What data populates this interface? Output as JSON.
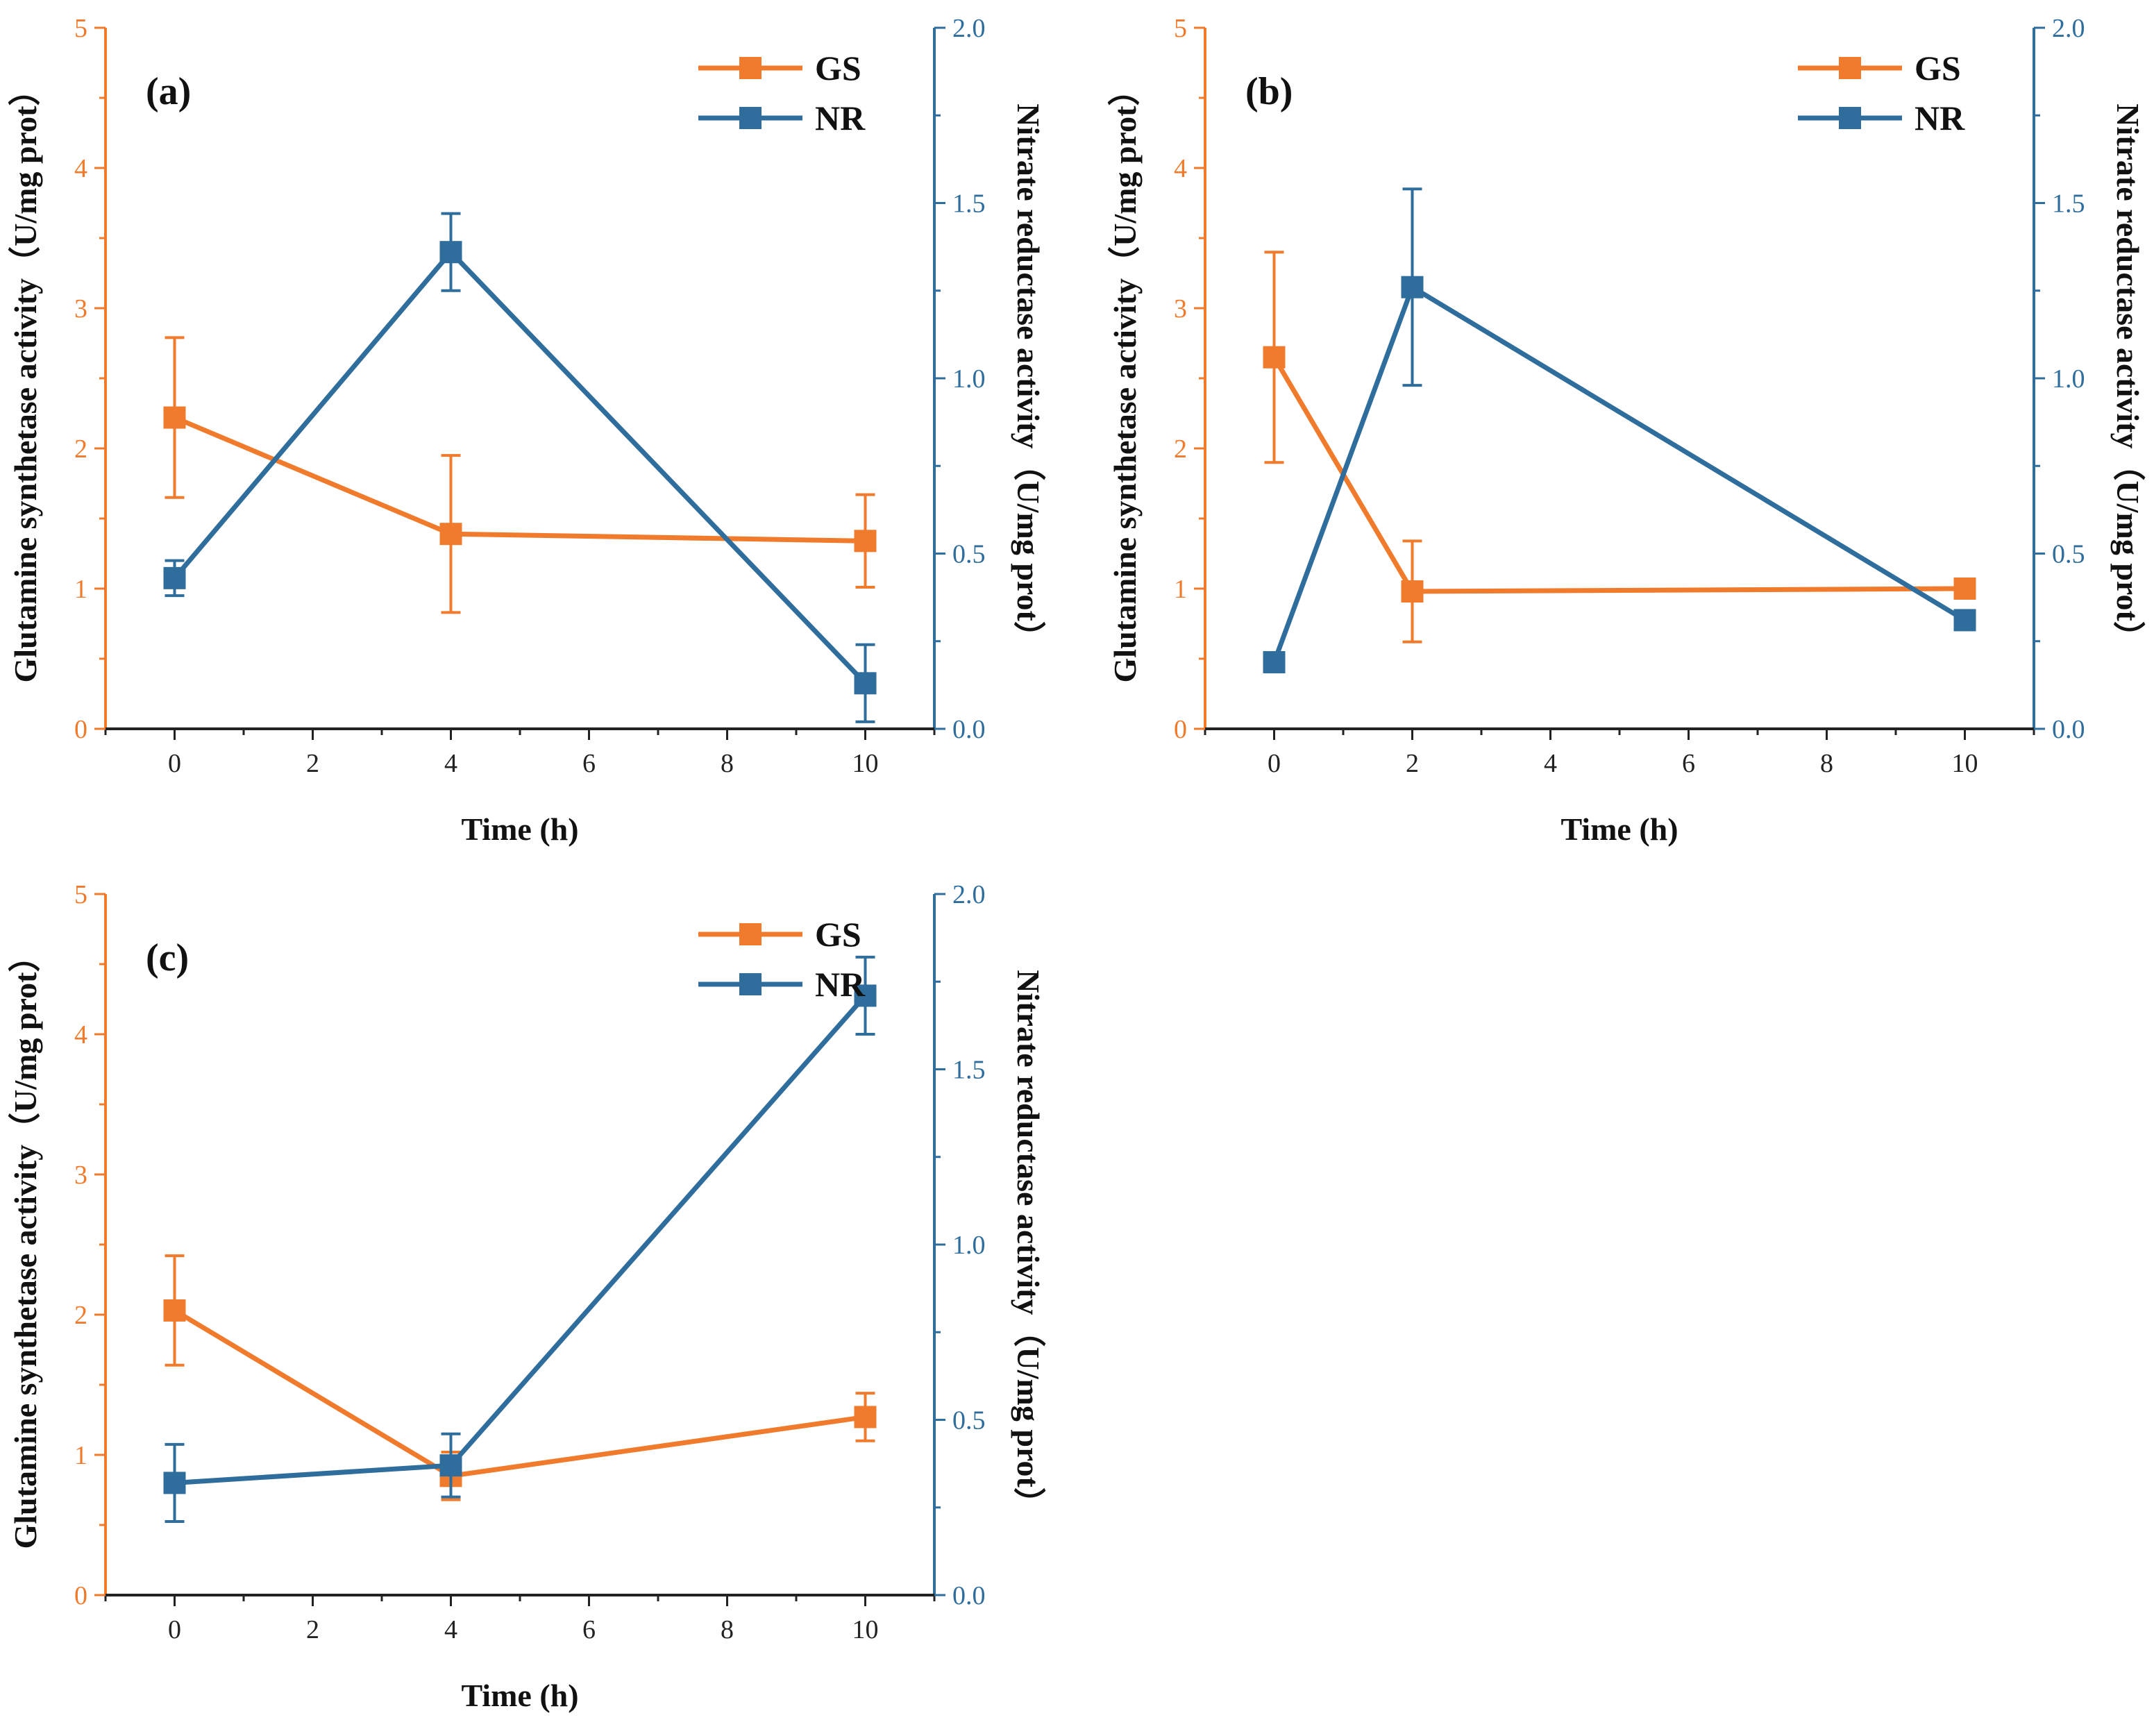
{
  "colors": {
    "gs": "#f07b2c",
    "nr": "#2f6d9c",
    "axis_bottom": "#222222"
  },
  "chart_data": [
    {
      "type": "line",
      "panel_label": "(a)",
      "xlabel": "Time (h)",
      "ylabel_left": "Glutamine synthetase activity（U/mg prot）",
      "ylabel_right": "Nitrate reductase activity（U/mg prot）",
      "xlim": [
        -1,
        11
      ],
      "ylim_left": [
        0,
        5
      ],
      "ylim_right": [
        0,
        2.0
      ],
      "x_ticks": [
        "0",
        "2",
        "4",
        "6",
        "8",
        "10"
      ],
      "y_ticks_left": [
        "0",
        "1",
        "2",
        "3",
        "4",
        "5"
      ],
      "y_ticks_right": [
        "0.0",
        "0.5",
        "1.0",
        "1.5",
        "2.0"
      ],
      "series": [
        {
          "name": "GS",
          "axis": "left",
          "x": [
            0,
            4,
            10
          ],
          "y": [
            2.22,
            1.39,
            1.34
          ],
          "err": [
            0.57,
            0.56,
            0.33
          ]
        },
        {
          "name": "NR",
          "axis": "right",
          "x": [
            0,
            4,
            10
          ],
          "y": [
            0.43,
            1.36,
            0.13
          ],
          "err": [
            0.05,
            0.11,
            0.11
          ]
        }
      ]
    },
    {
      "type": "line",
      "panel_label": "(b)",
      "xlabel": "Time (h)",
      "ylabel_left": "Glutamine synthetase activity（U/mg prot）",
      "ylabel_right": "Nitrate reductase activity（U/mg prot）",
      "xlim": [
        -1,
        11
      ],
      "ylim_left": [
        0,
        5
      ],
      "ylim_right": [
        0,
        2.0
      ],
      "x_ticks": [
        "0",
        "2",
        "4",
        "6",
        "8",
        "10"
      ],
      "y_ticks_left": [
        "0",
        "1",
        "2",
        "3",
        "4",
        "5"
      ],
      "y_ticks_right": [
        "0.0",
        "0.5",
        "1.0",
        "1.5",
        "2.0"
      ],
      "series": [
        {
          "name": "GS",
          "axis": "left",
          "x": [
            0,
            2,
            10
          ],
          "y": [
            2.65,
            0.98,
            1.0
          ],
          "err": [
            0.75,
            0.36,
            0
          ]
        },
        {
          "name": "NR",
          "axis": "right",
          "x": [
            0,
            2,
            10
          ],
          "y": [
            0.19,
            1.26,
            0.31
          ],
          "err": [
            0,
            0.28,
            0
          ]
        }
      ]
    },
    {
      "type": "line",
      "panel_label": "(c)",
      "xlabel": "Time (h)",
      "ylabel_left": "Glutamine synthetase activity（U/mg prot）",
      "ylabel_right": "Nitrate reductase activity（U/mg prot）",
      "xlim": [
        -1,
        11
      ],
      "ylim_left": [
        0,
        5
      ],
      "ylim_right": [
        0,
        2.0
      ],
      "x_ticks": [
        "0",
        "2",
        "4",
        "6",
        "8",
        "10"
      ],
      "y_ticks_left": [
        "0",
        "1",
        "2",
        "3",
        "4",
        "5"
      ],
      "y_ticks_right": [
        "0.0",
        "0.5",
        "1.0",
        "1.5",
        "2.0"
      ],
      "series": [
        {
          "name": "GS",
          "axis": "left",
          "x": [
            0,
            4,
            10
          ],
          "y": [
            2.03,
            0.85,
            1.27
          ],
          "err": [
            0.39,
            0.17,
            0.17
          ]
        },
        {
          "name": "NR",
          "axis": "right",
          "x": [
            0,
            4,
            10
          ],
          "y": [
            0.32,
            0.37,
            1.71
          ],
          "err": [
            0.11,
            0.09,
            0.11
          ]
        }
      ]
    }
  ]
}
